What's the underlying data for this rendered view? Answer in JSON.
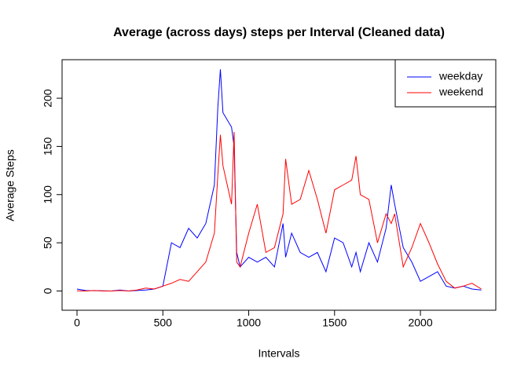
{
  "chart_data": {
    "type": "line",
    "title": "Average (across days) steps per Interval (Cleaned data)",
    "x_label": "Intervals",
    "y_label": "Average Steps",
    "x": [
      0,
      50,
      100,
      150,
      200,
      250,
      300,
      350,
      400,
      450,
      500,
      550,
      600,
      650,
      700,
      750,
      800,
      820,
      835,
      850,
      900,
      915,
      930,
      950,
      1000,
      1050,
      1100,
      1150,
      1200,
      1215,
      1250,
      1300,
      1350,
      1400,
      1450,
      1500,
      1550,
      1600,
      1625,
      1650,
      1700,
      1750,
      1800,
      1830,
      1850,
      1900,
      1950,
      2000,
      2050,
      2100,
      2150,
      2200,
      2250,
      2300,
      2355
    ],
    "series": [
      {
        "name": "weekday",
        "color": "#0000ff",
        "values": [
          2,
          0.5,
          0.3,
          0.2,
          0,
          1,
          0,
          0.5,
          1,
          2,
          5,
          50,
          45,
          65,
          55,
          70,
          110,
          190,
          230,
          185,
          170,
          150,
          40,
          25,
          35,
          30,
          35,
          25,
          70,
          35,
          60,
          40,
          35,
          40,
          20,
          55,
          50,
          25,
          40,
          20,
          50,
          30,
          65,
          110,
          90,
          45,
          30,
          10,
          15,
          20,
          5,
          3,
          5,
          2,
          1
        ]
      },
      {
        "name": "weekend",
        "color": "#ff0000",
        "values": [
          0.2,
          0,
          0.5,
          0,
          0,
          0.5,
          0,
          1,
          3,
          2,
          5,
          8,
          12,
          10,
          20,
          30,
          60,
          120,
          162,
          130,
          90,
          165,
          30,
          25,
          60,
          90,
          40,
          45,
          80,
          137,
          90,
          95,
          125,
          95,
          60,
          105,
          110,
          115,
          140,
          100,
          95,
          50,
          80,
          70,
          80,
          25,
          45,
          70,
          50,
          28,
          10,
          3,
          5,
          8,
          2
        ]
      }
    ],
    "xlim": [
      -87,
      2439
    ],
    "xticks": [
      0,
      500,
      1000,
      1500,
      2000
    ],
    "ylim": [
      -20,
      240
    ],
    "yticks": [
      0,
      50,
      100,
      150,
      200
    ],
    "legend": "top-right"
  }
}
